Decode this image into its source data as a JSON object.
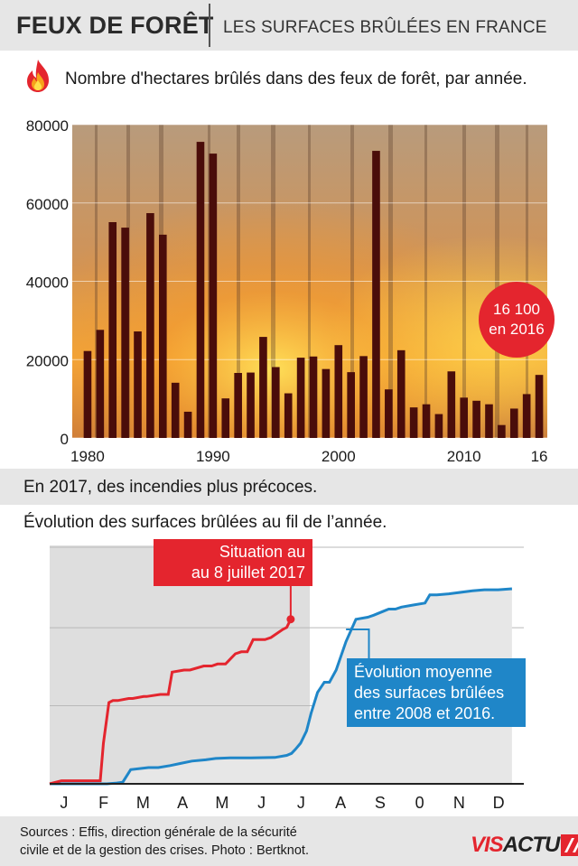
{
  "header": {
    "title": "FEUX DE FORÊT",
    "subtitle": "LES SURFACES BRÛLÉES EN FRANCE"
  },
  "section1": {
    "caption": "Nombre d'hectares brûlés dans des feux de forêt, par année.",
    "icon": "flame-icon"
  },
  "callout": {
    "line1": "16 100",
    "line2": "en 2016"
  },
  "section2": {
    "title": "En 2017, des incendies plus précoces."
  },
  "section3": {
    "caption": "Évolution des surfaces brûlées au fil de l’année.",
    "label_2017": [
      "Situation au",
      "au 8 juillet 2017"
    ],
    "label_avg": [
      "Évolution moyenne",
      "des surfaces brûlées",
      "entre 2008 et 2016."
    ]
  },
  "footer": {
    "sources": [
      "Sources : Effis, direction générale de la sécurité",
      "civile et de la gestion des crises. Photo : Bertknot."
    ],
    "brand": [
      "VIS",
      "ACTU"
    ]
  },
  "colors": {
    "bar": "#4a0d0a",
    "accent_red": "#e4252e",
    "accent_blue": "#1f86c8",
    "band_gray": "#e6e6e6"
  },
  "chart_data": [
    {
      "type": "bar",
      "title": "Nombre d'hectares brûlés dans des feux de forêt, par année.",
      "x": [
        1980,
        1981,
        1982,
        1983,
        1984,
        1985,
        1986,
        1987,
        1988,
        1989,
        1990,
        1991,
        1992,
        1993,
        1994,
        1995,
        1996,
        1997,
        1998,
        1999,
        2000,
        2001,
        2002,
        2003,
        2004,
        2005,
        2006,
        2007,
        2008,
        2009,
        2010,
        2011,
        2012,
        2013,
        2014,
        2015,
        2016
      ],
      "values": [
        22200,
        27600,
        55100,
        53700,
        27200,
        57400,
        51900,
        14100,
        6700,
        75600,
        72600,
        10100,
        16600,
        16700,
        25800,
        18100,
        11400,
        20500,
        20800,
        17600,
        23700,
        16800,
        20900,
        73300,
        12400,
        22400,
        7800,
        8600,
        6100,
        17000,
        10300,
        9500,
        8600,
        3300,
        7500,
        11200,
        16100
      ],
      "ylim": [
        0,
        80000
      ],
      "y_ticks": [
        0,
        20000,
        40000,
        60000,
        80000
      ],
      "x_tick_labels": [
        {
          "year": 1980,
          "label": "1980"
        },
        {
          "year": 1990,
          "label": "1990"
        },
        {
          "year": 2000,
          "label": "2000"
        },
        {
          "year": 2010,
          "label": "2010"
        },
        {
          "year": 2016,
          "label": "16"
        }
      ],
      "grid": true,
      "background": "photo of forest fire"
    },
    {
      "type": "line",
      "title": "Évolution des surfaces brûlées au fil de l’année.",
      "categories": [
        "J",
        "F",
        "M",
        "A",
        "M",
        "J",
        "J",
        "A",
        "S",
        "0",
        "N",
        "D"
      ],
      "ylim": [
        0,
        1
      ],
      "series": [
        {
          "name": "Situation au au 8 juillet 2017",
          "color": "#e4252e",
          "x": [
            0,
            0.3,
            1.0,
            1.12,
            1.28,
            1.36,
            1.5,
            1.6,
            1.72,
            2.0,
            2.1,
            2.38,
            2.45,
            2.8,
            3.0,
            3.1,
            3.4,
            3.55,
            3.9,
            4.1,
            4.25,
            4.45,
            4.7,
            4.85,
            5.0,
            5.15,
            5.45,
            5.6,
            5.9,
            6.0,
            6.1
          ],
          "values": [
            0,
            0.015,
            0.015,
            0.015,
            0.015,
            0.2,
            0.4,
            0.41,
            0.41,
            0.42,
            0.42,
            0.43,
            0.43,
            0.44,
            0.44,
            0.55,
            0.56,
            0.56,
            0.58,
            0.58,
            0.59,
            0.59,
            0.64,
            0.65,
            0.65,
            0.71,
            0.71,
            0.72,
            0.76,
            0.77,
            0.81
          ]
        },
        {
          "name": "Évolution moyenne des surfaces brûlées entre 2008 et 2016.",
          "color": "#1f86c8",
          "x": [
            0,
            1,
            1.45,
            1.7,
            1.85,
            2.05,
            2.5,
            2.75,
            3.05,
            3.3,
            3.6,
            3.95,
            4.2,
            4.6,
            5.1,
            5.7,
            6.0,
            6.12,
            6.22,
            6.35,
            6.5,
            6.62,
            6.78,
            6.95,
            7.08,
            7.25,
            7.5,
            7.75,
            8.05,
            8.2,
            8.45,
            8.58,
            8.75,
            8.9,
            9.2,
            9.5,
            9.62,
            9.8,
            10.1,
            10.3,
            10.7,
            11.0,
            11.35,
            11.7
          ],
          "values": [
            0,
            0,
            0,
            0.004,
            0.008,
            0.07,
            0.08,
            0.08,
            0.09,
            0.1,
            0.112,
            0.118,
            0.125,
            0.128,
            0.128,
            0.13,
            0.14,
            0.15,
            0.17,
            0.2,
            0.26,
            0.35,
            0.45,
            0.5,
            0.5,
            0.56,
            0.7,
            0.81,
            0.82,
            0.83,
            0.85,
            0.86,
            0.86,
            0.87,
            0.88,
            0.89,
            0.93,
            0.93,
            0.935,
            0.94,
            0.95,
            0.955,
            0.955,
            0.96
          ]
        }
      ],
      "marker": {
        "x": 6.1,
        "y": 0.81,
        "label": "8 juillet 2017"
      },
      "grid": true
    }
  ]
}
